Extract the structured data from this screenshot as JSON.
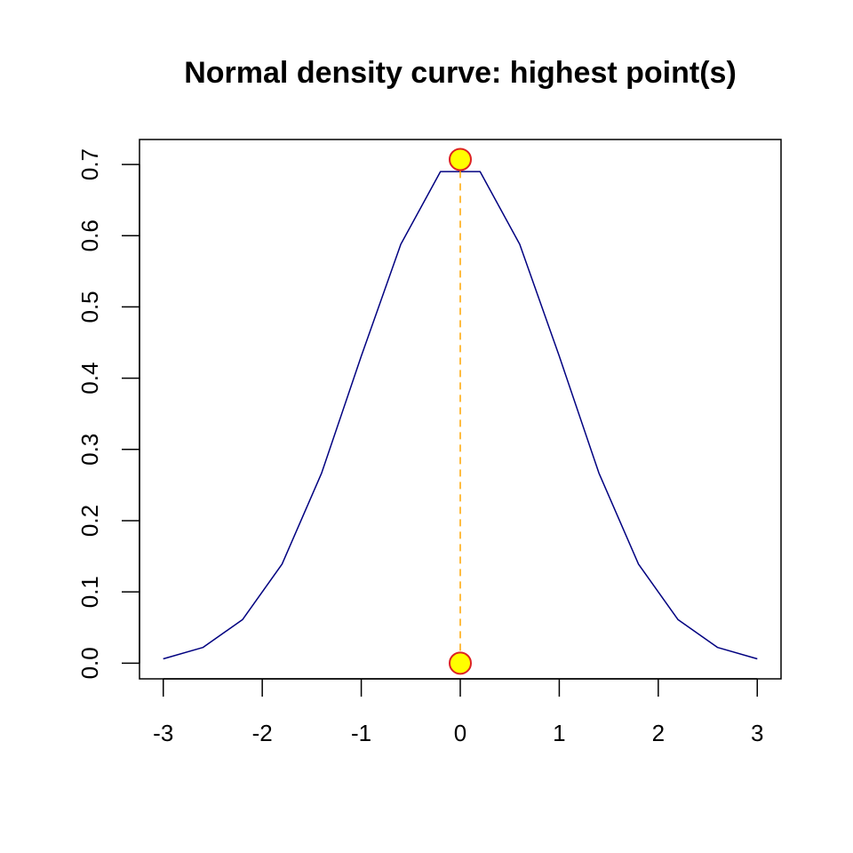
{
  "chart_data": {
    "type": "line",
    "title": "Normal density curve: highest point(s)",
    "xlabel": "",
    "ylabel": "",
    "xlim": [
      -3.24,
      3.24
    ],
    "ylim": [
      -0.022,
      0.735
    ],
    "x_ticks": [
      "-3",
      "-2",
      "-1",
      "0",
      "1",
      "2",
      "3"
    ],
    "y_ticks": [
      "0.0",
      "0.1",
      "0.2",
      "0.3",
      "0.4",
      "0.5",
      "0.6",
      "0.7"
    ],
    "grid": false,
    "legend": "none",
    "series": [
      {
        "x": [
          -3.0,
          -2.6,
          -2.2,
          -1.8,
          -1.4,
          -1.0,
          -0.6,
          -0.2,
          0.2,
          0.6,
          1.0,
          1.4,
          1.8,
          2.2,
          2.6,
          3.0
        ],
        "y": [
          0.006,
          0.022,
          0.061,
          0.139,
          0.267,
          0.431,
          0.588,
          0.69,
          0.69,
          0.588,
          0.431,
          0.267,
          0.139,
          0.061,
          0.022,
          0.006
        ],
        "color": "#000080"
      }
    ],
    "highlight_points": [
      {
        "x": 0,
        "y": 0.707
      },
      {
        "x": 0,
        "y": 0.0
      }
    ],
    "highlight_fill": "#FFFF00",
    "highlight_stroke": "#DD2222",
    "guide_line": {
      "x": 0,
      "y_from": 0.0,
      "y_to": 0.707,
      "color": "#FFA500",
      "style": "dashed"
    }
  }
}
